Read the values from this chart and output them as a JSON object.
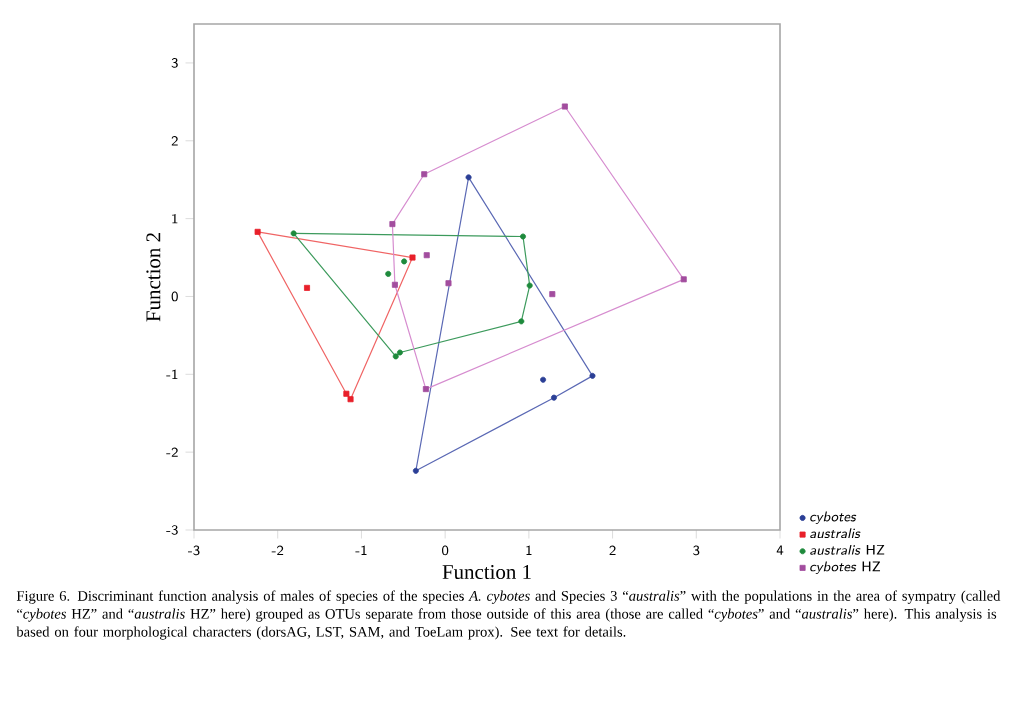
{
  "chart_data": {
    "type": "scatter",
    "xlabel": "Function 1",
    "ylabel": "Function 2",
    "xlim": [
      -3,
      4
    ],
    "ylim": [
      -3,
      3.5
    ],
    "xticks": [
      -3,
      -2,
      -1,
      0,
      1,
      2,
      3,
      4
    ],
    "yticks": [
      -3,
      -2,
      -1,
      0,
      1,
      2,
      3
    ],
    "legend": "bottom right",
    "annotations": [
      "Figure 6. Discriminant function analysis of males of species of the species *A. cybotes* and Species 3 “*australis*” with the populations in the area of sympatry (called “*cybotes* HZ” and “*australis* HZ” here) grouped as OTUs separate from those outside of this area (those are called “*cybotes*” and “*australis*” here). This analysis is based on four morphological characters (dorsAG, LST, SAM, and ToeLam prox). See text for details."
    ],
    "series": [
      {
        "type": "line",
        "color": "#5a68b4",
        "marker": "none",
        "x": [
          -0.35,
          0.28,
          1.76
        ],
        "values": [
          -2.24,
          1.53,
          -1.02
        ]
      },
      {
        "type": "line",
        "color": "#5a68b4",
        "marker": "none",
        "x": [
          -0.35,
          1.3,
          1.76
        ],
        "values": [
          -2.24,
          -1.3,
          -1.02
        ]
      },
      {
        "type": "line",
        "color": "#f06464",
        "marker": "none",
        "x": [
          -2.24,
          -0.39
        ],
        "values": [
          0.83,
          0.5
        ]
      },
      {
        "type": "line",
        "color": "#f06464",
        "marker": "none",
        "x": [
          -2.24,
          -1.18,
          -1.13,
          -0.39
        ],
        "values": [
          0.83,
          -1.25,
          -1.32,
          0.5
        ]
      },
      {
        "type": "line",
        "color": "#3c9a5c",
        "marker": "none",
        "x": [
          -1.81,
          0.93,
          1.01
        ],
        "values": [
          0.81,
          0.77,
          0.14
        ]
      },
      {
        "type": "line",
        "color": "#3c9a5c",
        "marker": "none",
        "x": [
          -1.81,
          -0.59,
          -0.54,
          0.91,
          1.01
        ],
        "values": [
          0.81,
          -0.77,
          -0.72,
          -0.32,
          0.14
        ]
      },
      {
        "type": "line",
        "color": "#d68ccf",
        "marker": "none",
        "x": [
          -0.63,
          -0.25,
          1.43,
          2.85
        ],
        "values": [
          0.93,
          1.57,
          2.44,
          0.22
        ]
      },
      {
        "type": "line",
        "color": "#d68ccf",
        "marker": "none",
        "x": [
          -0.63,
          -0.6,
          -0.23,
          2.85
        ],
        "values": [
          0.93,
          0.15,
          -1.19,
          0.22
        ]
      },
      {
        "name": "*cybotes*",
        "color": "#2b3f96",
        "marker": "circle",
        "x": [
          0.28,
          1.76,
          1.3,
          1.17,
          -0.35
        ],
        "values": [
          1.53,
          -1.02,
          -1.3,
          -1.07,
          -2.24
        ]
      },
      {
        "name": "*australis*",
        "color": "#e8202a",
        "marker": "square",
        "x": [
          -2.24,
          -1.65,
          -0.39,
          -1.18,
          -1.13
        ],
        "values": [
          0.83,
          0.11,
          0.5,
          -1.25,
          -1.32
        ]
      },
      {
        "name": "*australis* HZ",
        "color": "#1e8a3c",
        "marker": "circle",
        "x": [
          -1.81,
          0.93,
          1.01,
          0.91,
          -0.54,
          -0.59,
          -0.68,
          -0.49
        ],
        "values": [
          0.81,
          0.77,
          0.14,
          -0.32,
          -0.72,
          -0.77,
          0.29,
          0.45
        ]
      },
      {
        "name": "*cybotes* HZ",
        "color": "#a24d9e",
        "marker": "square",
        "x": [
          1.43,
          2.85,
          -0.25,
          -0.63,
          -0.6,
          -0.22,
          0.04,
          1.28,
          -0.23
        ],
        "values": [
          2.44,
          0.22,
          1.57,
          0.93,
          0.15,
          0.53,
          0.17,
          0.03,
          -1.19
        ]
      }
    ]
  }
}
